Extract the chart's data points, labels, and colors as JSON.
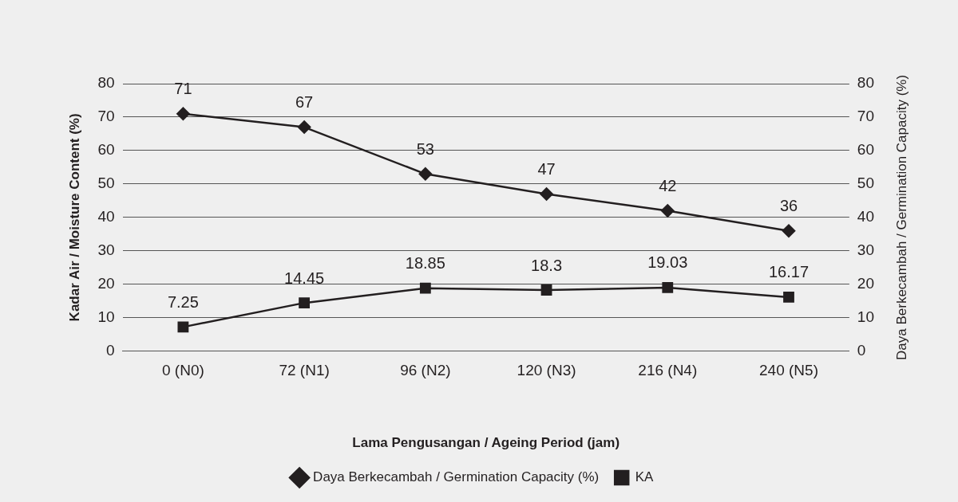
{
  "chart_data": {
    "type": "line",
    "xlabel": "Lama Pengusangan / Ageing Period (jam)",
    "ylabel": "Kadar Air / Moisture Content (%)",
    "y2label": "Daya Berkecambah / Germination Capacity (%)",
    "categories": [
      "0 (N0)",
      "72 (N1)",
      "96 (N2)",
      "120 (N3)",
      "216 (N4)",
      "240 (N5)"
    ],
    "series": [
      {
        "name": "Daya Berkecambah / Germination Capacity (%)",
        "color": "#231f20",
        "values": [
          71,
          67,
          53,
          47,
          42,
          36
        ],
        "marker": "diamond"
      },
      {
        "name": "KA",
        "color": "#231f20",
        "values": [
          7.25,
          14.45,
          18.85,
          18.3,
          19.03,
          16.17
        ],
        "marker": "square"
      }
    ],
    "ylim": [
      0,
      80
    ],
    "yticks": [
      0,
      10,
      20,
      30,
      40,
      50,
      60,
      70,
      80
    ],
    "y2lim": [
      0,
      80
    ],
    "y2ticks": [
      0,
      10,
      20,
      30,
      40,
      50,
      60,
      70,
      80
    ],
    "grid": "y",
    "legend": "bottom",
    "data_labels": true
  }
}
